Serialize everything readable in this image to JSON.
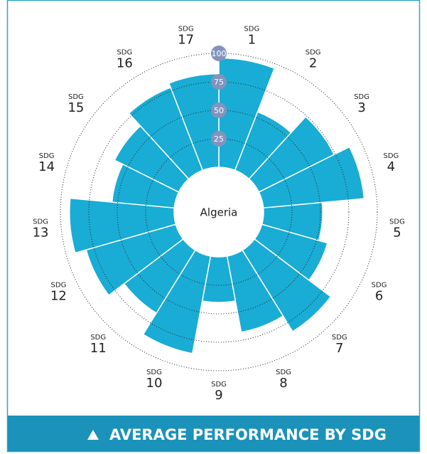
{
  "chart_data": {
    "type": "polar_bar",
    "center_label": "Algeria",
    "categories": [
      "SDG 1",
      "SDG 2",
      "SDG 3",
      "SDG 4",
      "SDG 5",
      "SDG 6",
      "SDG 7",
      "SDG 8",
      "SDG 9",
      "SDG 10",
      "SDG 11",
      "SDG 12",
      "SDG 13",
      "SDG 14",
      "SDG 15",
      "SDG 16",
      "SDG 17"
    ],
    "values": [
      96,
      55,
      74,
      89,
      52,
      60,
      84,
      68,
      40,
      87,
      65,
      82,
      92,
      55,
      63,
      78,
      82
    ],
    "color": "#19acd4",
    "rlim": [
      0,
      100
    ],
    "rticks": [
      25,
      50,
      75,
      100
    ],
    "footer": "AVERAGE PERFORMANCE BY SDG"
  }
}
